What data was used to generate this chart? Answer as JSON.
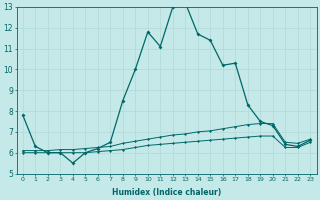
{
  "xlabel": "Humidex (Indice chaleur)",
  "ylabel": "",
  "xlim": [
    -0.5,
    23.5
  ],
  "ylim": [
    5,
    13
  ],
  "yticks": [
    5,
    6,
    7,
    8,
    9,
    10,
    11,
    12,
    13
  ],
  "xtick_labels": [
    "0",
    "1",
    "2",
    "3",
    "4",
    "5",
    "6",
    "7",
    "8",
    "9",
    "10",
    "11",
    "12",
    "13",
    "14",
    "15",
    "16",
    "17",
    "18",
    "19",
    "20",
    "21",
    "22",
    "23"
  ],
  "xticks": [
    0,
    1,
    2,
    3,
    4,
    5,
    6,
    7,
    8,
    9,
    10,
    11,
    12,
    13,
    14,
    15,
    16,
    17,
    18,
    19,
    20,
    21,
    22,
    23
  ],
  "bg_color": "#c5e8e8",
  "line_color": "#006868",
  "grid_color": "#b0d8d8",
  "series": {
    "main": {
      "x": [
        0,
        1,
        2,
        3,
        4,
        5,
        6,
        7,
        8,
        9,
        10,
        11,
        12,
        13,
        14,
        15,
        16,
        17,
        18,
        19,
        20,
        21,
        22,
        23
      ],
      "y": [
        7.8,
        6.3,
        6.0,
        6.0,
        5.5,
        6.0,
        6.2,
        6.5,
        8.5,
        10.0,
        11.8,
        11.1,
        13.0,
        13.2,
        11.7,
        11.4,
        10.2,
        10.3,
        8.3,
        7.5,
        7.3,
        6.4,
        6.3,
        6.6
      ]
    },
    "upper": {
      "x": [
        0,
        1,
        2,
        3,
        4,
        5,
        6,
        7,
        8,
        9,
        10,
        11,
        12,
        13,
        14,
        15,
        16,
        17,
        18,
        19,
        20,
        21,
        22,
        23
      ],
      "y": [
        6.1,
        6.1,
        6.1,
        6.15,
        6.15,
        6.2,
        6.25,
        6.3,
        6.45,
        6.55,
        6.65,
        6.75,
        6.85,
        6.9,
        7.0,
        7.05,
        7.15,
        7.25,
        7.35,
        7.4,
        7.4,
        6.5,
        6.45,
        6.65
      ]
    },
    "lower": {
      "x": [
        0,
        1,
        2,
        3,
        4,
        5,
        6,
        7,
        8,
        9,
        10,
        11,
        12,
        13,
        14,
        15,
        16,
        17,
        18,
        19,
        20,
        21,
        22,
        23
      ],
      "y": [
        6.0,
        6.0,
        6.0,
        6.0,
        6.0,
        6.0,
        6.05,
        6.1,
        6.15,
        6.25,
        6.35,
        6.4,
        6.45,
        6.5,
        6.55,
        6.6,
        6.65,
        6.7,
        6.75,
        6.8,
        6.8,
        6.25,
        6.25,
        6.5
      ]
    }
  }
}
